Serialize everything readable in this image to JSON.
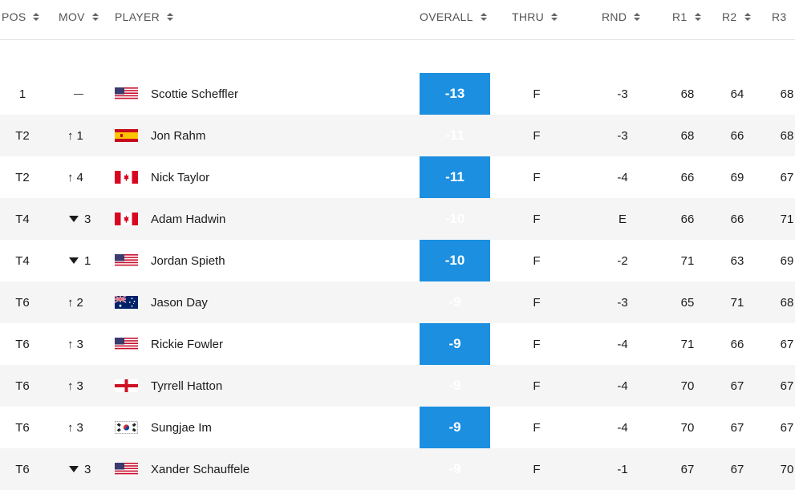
{
  "header": {
    "pos": "POS",
    "mov": "MOV",
    "player": "PLAYER",
    "overall": "OVERALL",
    "thru": "THRU",
    "rnd": "RND",
    "r1": "R1",
    "r2": "R2",
    "r3": "R3"
  },
  "colors": {
    "overall_highlight": "#1c8fe0",
    "row_alt": "#f5f5f5"
  },
  "rows": [
    {
      "pos": "1",
      "mov_dir": "none",
      "mov": "",
      "flag": "usa",
      "player": "Scottie Scheffler",
      "overall": "-13",
      "thru": "F",
      "rnd": "-3",
      "r1": "68",
      "r2": "64",
      "r3": "68"
    },
    {
      "pos": "T2",
      "mov_dir": "up",
      "mov": "1",
      "flag": "spain",
      "player": "Jon Rahm",
      "overall": "-11",
      "thru": "F",
      "rnd": "-3",
      "r1": "68",
      "r2": "66",
      "r3": "68"
    },
    {
      "pos": "T2",
      "mov_dir": "up",
      "mov": "4",
      "flag": "canada",
      "player": "Nick Taylor",
      "overall": "-11",
      "thru": "F",
      "rnd": "-4",
      "r1": "66",
      "r2": "69",
      "r3": "67"
    },
    {
      "pos": "T4",
      "mov_dir": "down",
      "mov": "3",
      "flag": "canada",
      "player": "Adam Hadwin",
      "overall": "-10",
      "thru": "F",
      "rnd": "E",
      "r1": "66",
      "r2": "66",
      "r3": "71"
    },
    {
      "pos": "T4",
      "mov_dir": "down",
      "mov": "1",
      "flag": "usa",
      "player": "Jordan Spieth",
      "overall": "-10",
      "thru": "F",
      "rnd": "-2",
      "r1": "71",
      "r2": "63",
      "r3": "69"
    },
    {
      "pos": "T6",
      "mov_dir": "up",
      "mov": "2",
      "flag": "australia",
      "player": "Jason Day",
      "overall": "-9",
      "thru": "F",
      "rnd": "-3",
      "r1": "65",
      "r2": "71",
      "r3": "68"
    },
    {
      "pos": "T6",
      "mov_dir": "up",
      "mov": "3",
      "flag": "usa",
      "player": "Rickie Fowler",
      "overall": "-9",
      "thru": "F",
      "rnd": "-4",
      "r1": "71",
      "r2": "66",
      "r3": "67"
    },
    {
      "pos": "T6",
      "mov_dir": "up",
      "mov": "3",
      "flag": "england",
      "player": "Tyrrell Hatton",
      "overall": "-9",
      "thru": "F",
      "rnd": "-4",
      "r1": "70",
      "r2": "67",
      "r3": "67"
    },
    {
      "pos": "T6",
      "mov_dir": "up",
      "mov": "3",
      "flag": "korea",
      "player": "Sungjae Im",
      "overall": "-9",
      "thru": "F",
      "rnd": "-4",
      "r1": "70",
      "r2": "67",
      "r3": "67"
    },
    {
      "pos": "T6",
      "mov_dir": "down",
      "mov": "3",
      "flag": "usa",
      "player": "Xander Schauffele",
      "overall": "-9",
      "thru": "F",
      "rnd": "-1",
      "r1": "67",
      "r2": "67",
      "r3": "70"
    }
  ]
}
